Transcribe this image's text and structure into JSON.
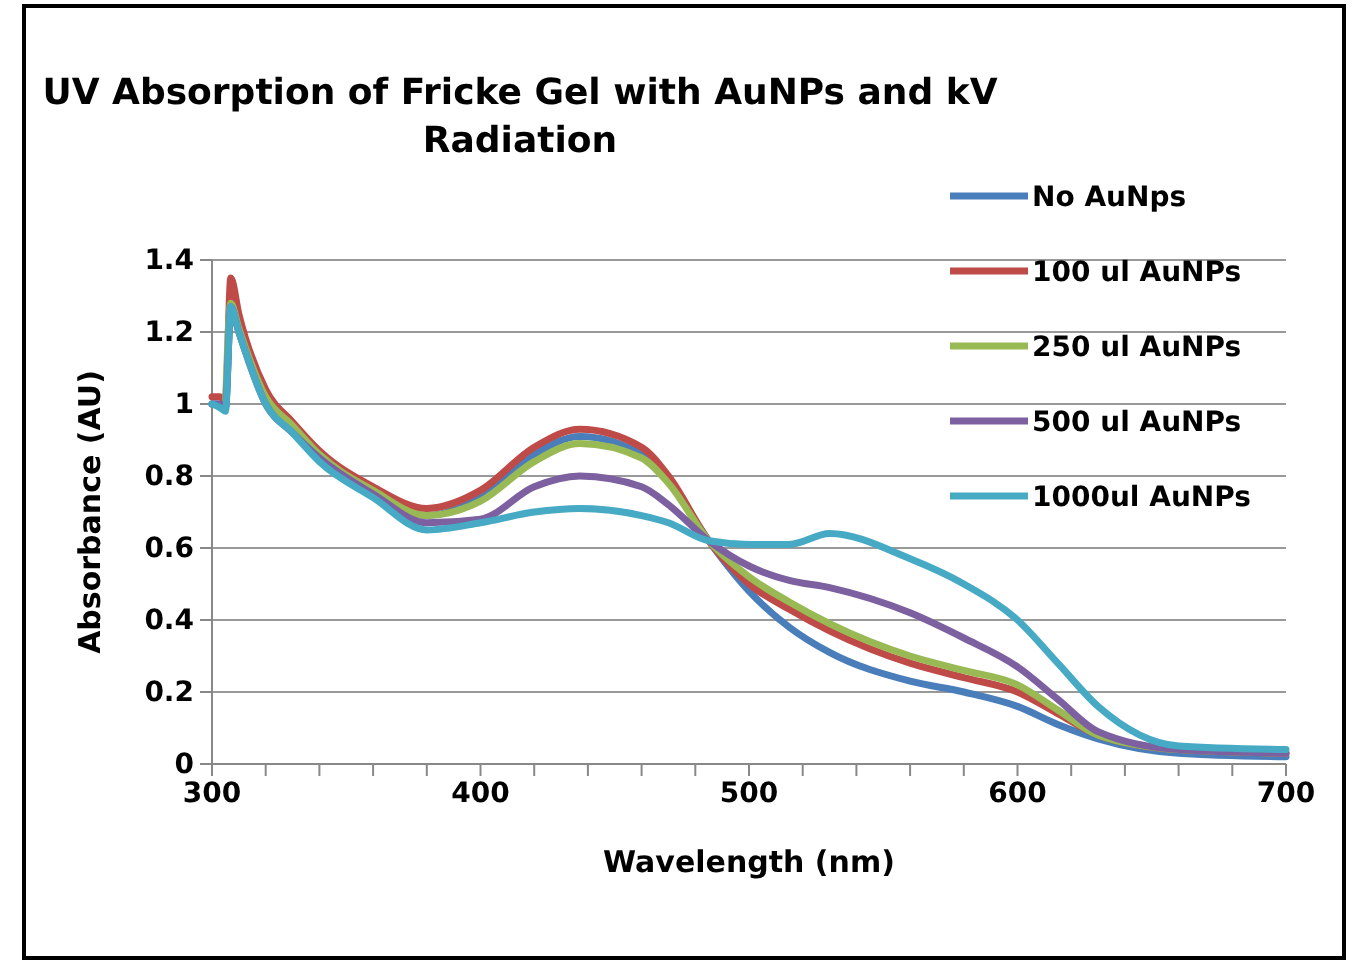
{
  "chart_data": {
    "type": "line",
    "title": "UV Absorption of Fricke Gel with AuNPs and kV Radiation",
    "xlabel": "Wavelength (nm)",
    "ylabel": "Absorbance (AU)",
    "x": [
      300,
      303,
      305,
      307,
      310,
      320,
      330,
      340,
      360,
      380,
      400,
      420,
      437,
      460,
      470,
      485,
      500,
      515,
      530,
      560,
      580,
      600,
      615,
      630,
      660,
      700
    ],
    "xlim": [
      300,
      700
    ],
    "xticks": [
      300,
      {
        "value": 320,
        "label": null
      },
      {
        "value": 340,
        "label": null
      },
      {
        "value": 360,
        "label": null
      },
      {
        "value": 380,
        "label": null
      },
      400,
      {
        "value": 420,
        "label": null
      },
      {
        "value": 440,
        "label": null
      },
      {
        "value": 460,
        "label": null
      },
      {
        "value": 480,
        "label": null
      },
      500,
      {
        "value": 520,
        "label": null
      },
      {
        "value": 540,
        "label": null
      },
      {
        "value": 560,
        "label": null
      },
      {
        "value": 580,
        "label": null
      },
      600,
      {
        "value": 620,
        "label": null
      },
      {
        "value": 640,
        "label": null
      },
      {
        "value": 660,
        "label": null
      },
      {
        "value": 680,
        "label": null
      },
      700
    ],
    "ylim": [
      0,
      1.4
    ],
    "yticks": [
      0,
      0.2,
      0.4,
      0.6,
      0.8,
      1,
      1.2,
      1.4
    ],
    "grid": "y",
    "legend": "right",
    "marker": "none",
    "series": [
      {
        "name": "No AuNps",
        "color": "#4a7ebb",
        "values": [
          1.0,
          1.0,
          0.99,
          1.27,
          1.2,
          1.02,
          0.93,
          0.86,
          0.76,
          0.69,
          0.74,
          0.86,
          0.91,
          0.86,
          0.79,
          0.62,
          0.48,
          0.38,
          0.31,
          0.23,
          0.2,
          0.16,
          0.11,
          0.07,
          0.03,
          0.02
        ]
      },
      {
        "name": "100 ul AuNPs",
        "color": "#be4b48",
        "values": [
          1.02,
          1.02,
          1.01,
          1.35,
          1.25,
          1.04,
          0.95,
          0.87,
          0.77,
          0.71,
          0.76,
          0.88,
          0.93,
          0.88,
          0.8,
          0.62,
          0.5,
          0.43,
          0.37,
          0.28,
          0.24,
          0.2,
          0.14,
          0.08,
          0.04,
          0.03
        ]
      },
      {
        "name": "250 ul AuNPs",
        "color": "#98b954",
        "values": [
          null,
          null,
          0.99,
          1.28,
          1.21,
          1.02,
          0.94,
          0.86,
          0.76,
          0.69,
          0.73,
          0.84,
          0.89,
          0.85,
          0.78,
          0.62,
          0.52,
          0.45,
          0.39,
          0.3,
          0.26,
          0.22,
          0.15,
          0.08,
          0.04,
          0.03
        ]
      },
      {
        "name": "500 ul AuNPs",
        "color": "#7d60a0",
        "values": [
          1.0,
          1.0,
          0.99,
          1.27,
          1.2,
          1.0,
          0.92,
          0.85,
          0.75,
          0.67,
          0.68,
          0.77,
          0.8,
          0.77,
          0.72,
          0.62,
          0.55,
          0.51,
          0.49,
          0.42,
          0.35,
          0.27,
          0.18,
          0.09,
          0.04,
          0.03
        ]
      },
      {
        "name": "1000ul AuNPs",
        "color": "#46aac5",
        "values": [
          1.0,
          0.99,
          0.98,
          1.27,
          1.2,
          1.0,
          0.92,
          0.84,
          0.74,
          0.65,
          0.67,
          0.7,
          0.71,
          0.69,
          0.67,
          0.62,
          0.61,
          0.61,
          0.64,
          0.57,
          0.5,
          0.4,
          0.28,
          0.16,
          0.05,
          0.04
        ]
      }
    ]
  }
}
